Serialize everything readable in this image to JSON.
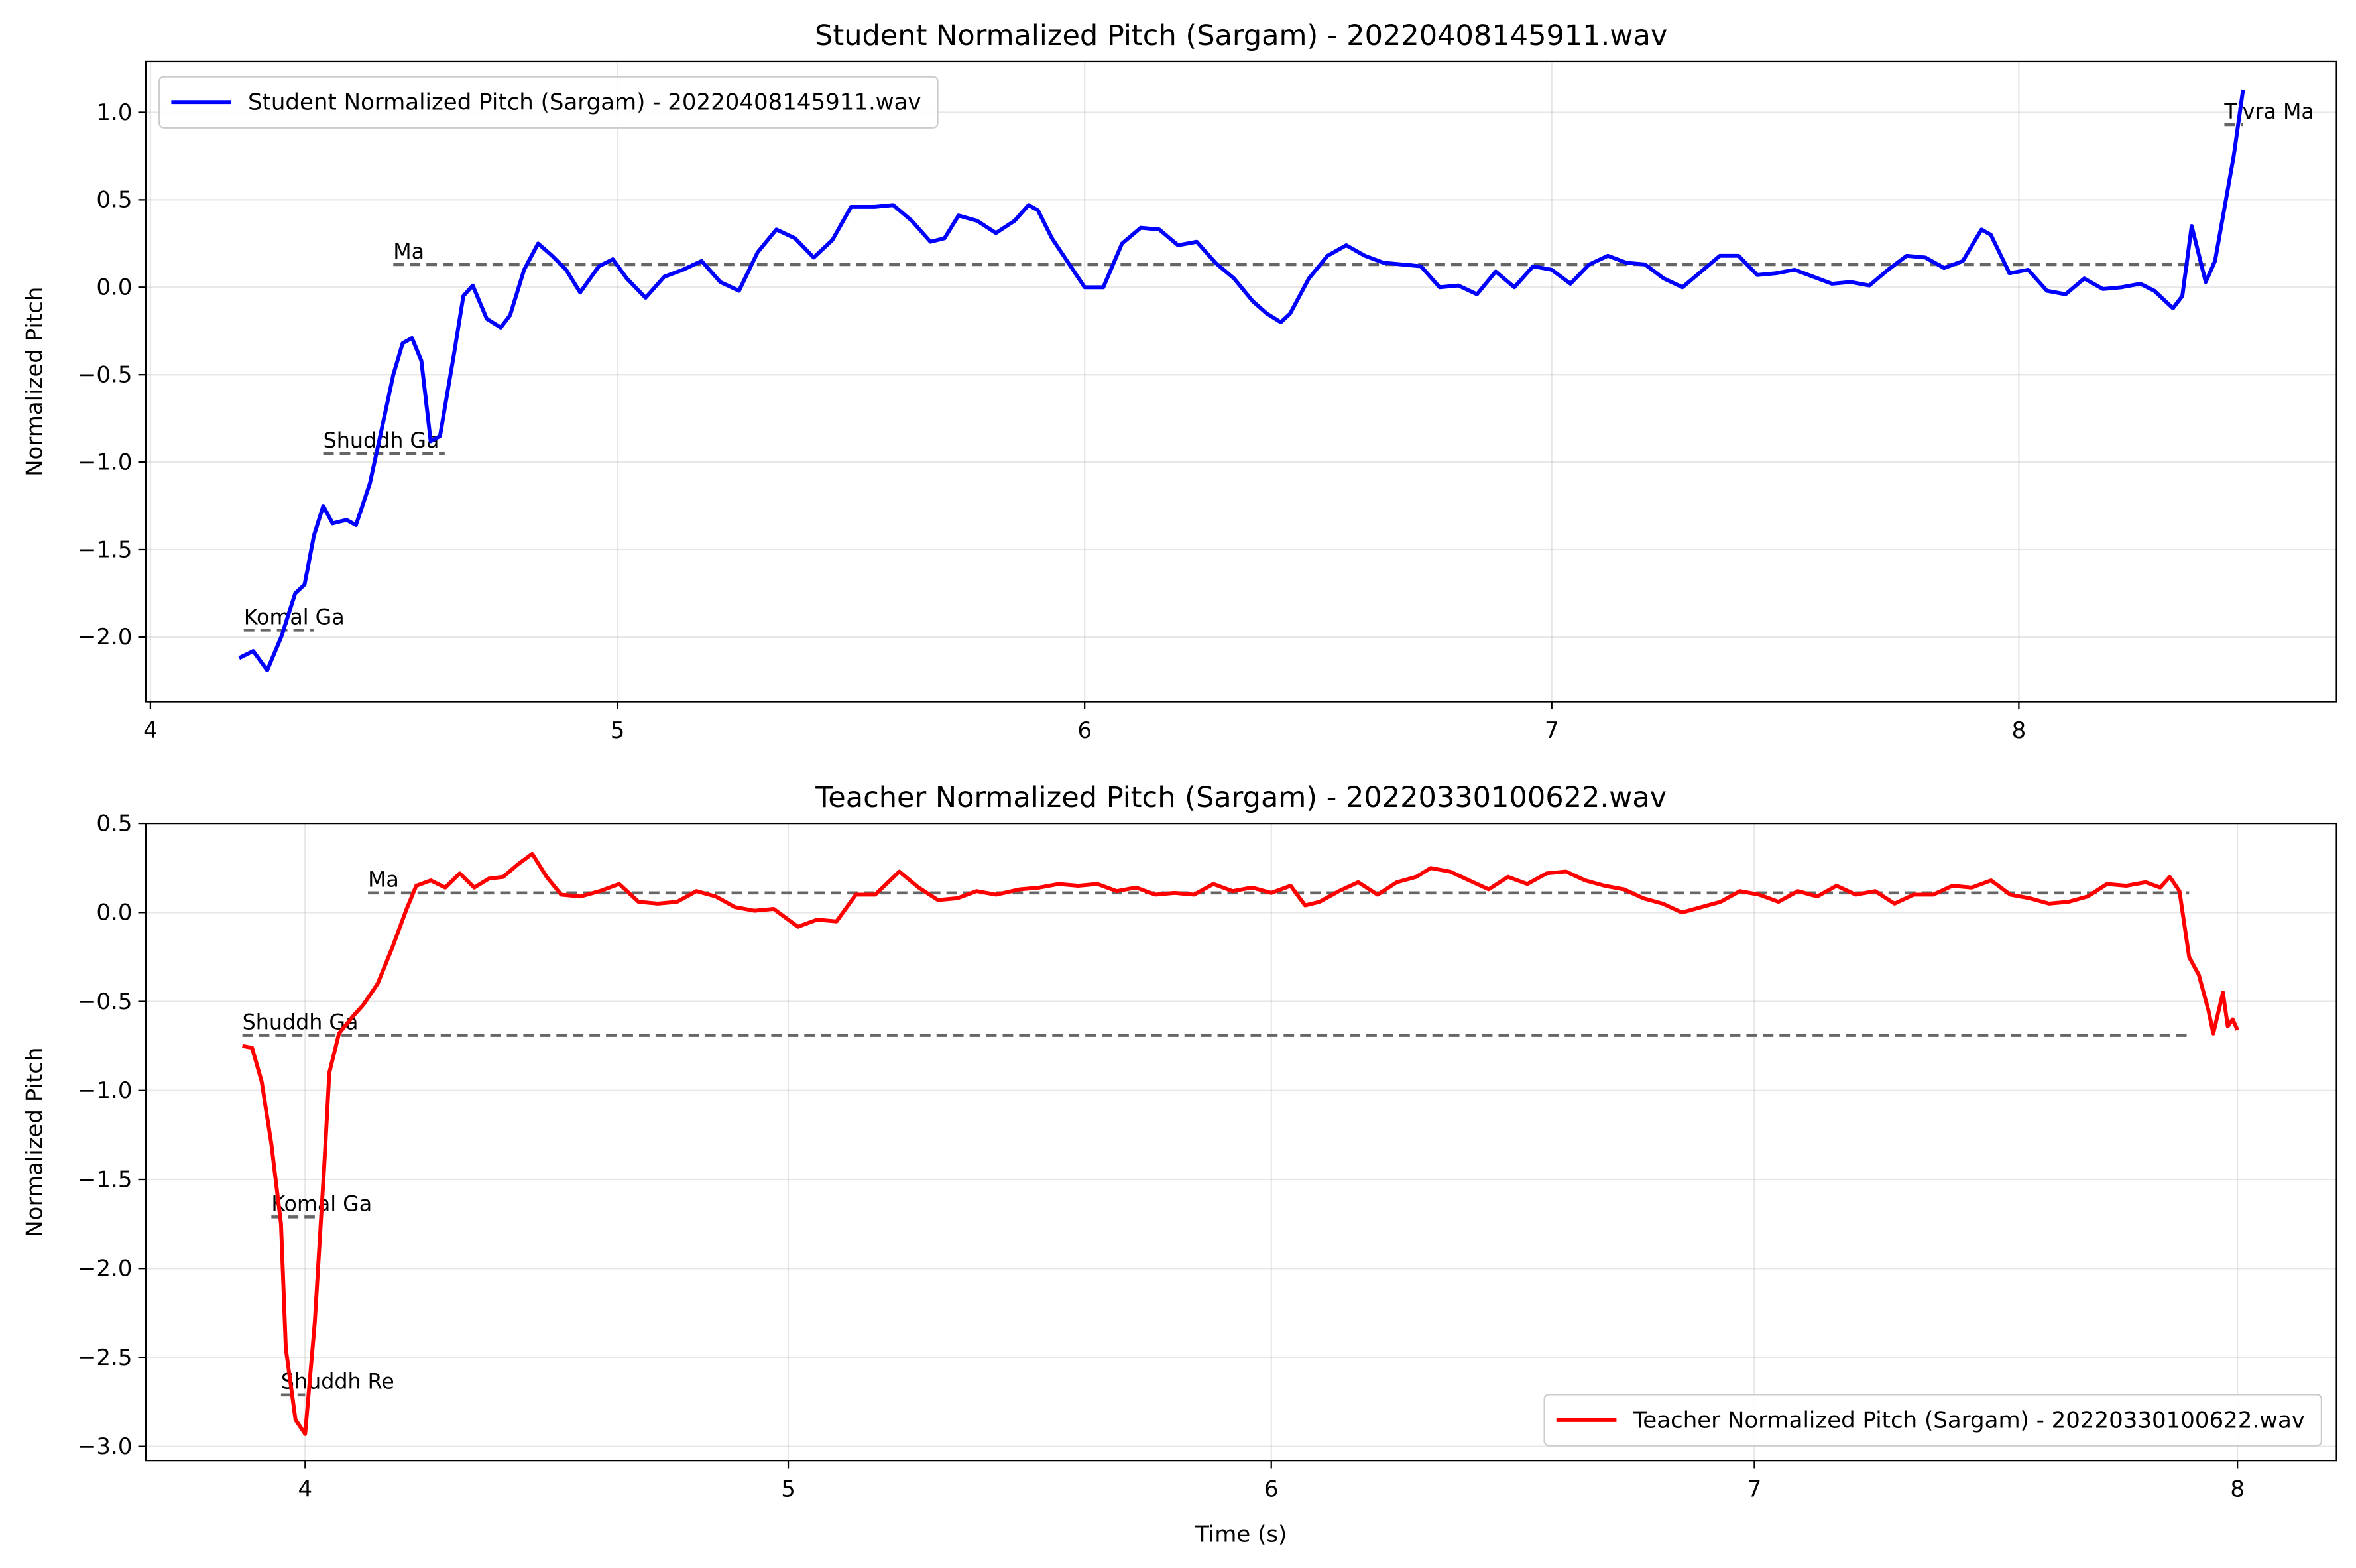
{
  "chart_data": [
    {
      "type": "line",
      "title": "Student Normalized Pitch (Sargam) - 20220408145911.wav",
      "ylabel": "Normalized Pitch",
      "xlim": [
        3.99,
        8.68
      ],
      "ylim": [
        -2.37,
        1.29
      ],
      "xticks": [
        4,
        5,
        6,
        7,
        8
      ],
      "yticks": [
        {
          "value": -2.0,
          "label": "−2.0"
        },
        {
          "value": -1.5,
          "label": "−1.5"
        },
        {
          "value": -1.0,
          "label": "−1.0"
        },
        {
          "value": -0.5,
          "label": "−0.5"
        },
        {
          "value": 0.0,
          "label": "0.0"
        },
        {
          "value": 0.5,
          "label": "0.5"
        },
        {
          "value": 1.0,
          "label": "1.0"
        }
      ],
      "grid": true,
      "legend": "upper left",
      "reference_lines": [
        {
          "label": "Komal Ga",
          "value": -1.96,
          "x": [
            4.2,
            4.35
          ]
        },
        {
          "label": "Shuddh Ga",
          "value": -0.95,
          "x": [
            4.37,
            4.63
          ]
        },
        {
          "label": "Ma",
          "value": 0.13,
          "x": [
            4.52,
            8.42
          ]
        },
        {
          "label": "Tivra Ma",
          "value": 0.93,
          "x": [
            8.44,
            8.48
          ]
        }
      ],
      "series": [
        {
          "name": "Student Normalized Pitch (Sargam) - 20220408145911.wav",
          "color": "#0000ff",
          "x": [
            4.19,
            4.22,
            4.25,
            4.28,
            4.31,
            4.33,
            4.35,
            4.37,
            4.39,
            4.42,
            4.44,
            4.47,
            4.5,
            4.52,
            4.54,
            4.56,
            4.58,
            4.6,
            4.62,
            4.65,
            4.67,
            4.69,
            4.72,
            4.75,
            4.77,
            4.8,
            4.83,
            4.86,
            4.89,
            4.92,
            4.96,
            4.99,
            5.02,
            5.06,
            5.1,
            5.14,
            5.18,
            5.22,
            5.26,
            5.3,
            5.34,
            5.38,
            5.42,
            5.46,
            5.5,
            5.55,
            5.59,
            5.63,
            5.67,
            5.7,
            5.73,
            5.77,
            5.81,
            5.85,
            5.88,
            5.9,
            5.93,
            5.97,
            6.0,
            6.04,
            6.08,
            6.12,
            6.16,
            6.2,
            6.24,
            6.28,
            6.32,
            6.36,
            6.39,
            6.42,
            6.44,
            6.48,
            6.52,
            6.56,
            6.6,
            6.64,
            6.68,
            6.72,
            6.76,
            6.8,
            6.84,
            6.88,
            6.92,
            6.96,
            7.0,
            7.04,
            7.08,
            7.12,
            7.16,
            7.2,
            7.24,
            7.28,
            7.32,
            7.36,
            7.4,
            7.44,
            7.48,
            7.52,
            7.56,
            7.6,
            7.64,
            7.68,
            7.72,
            7.76,
            7.8,
            7.84,
            7.88,
            7.92,
            7.94,
            7.98,
            8.02,
            8.06,
            8.1,
            8.14,
            8.18,
            8.22,
            8.26,
            8.29,
            8.33,
            8.35,
            8.37,
            8.4,
            8.42,
            8.44,
            8.46,
            8.48
          ],
          "values": [
            -2.12,
            -2.08,
            -2.19,
            -2.0,
            -1.75,
            -1.7,
            -1.42,
            -1.25,
            -1.35,
            -1.33,
            -1.36,
            -1.12,
            -0.75,
            -0.5,
            -0.32,
            -0.29,
            -0.42,
            -0.88,
            -0.85,
            -0.38,
            -0.05,
            0.01,
            -0.18,
            -0.23,
            -0.16,
            0.1,
            0.25,
            0.18,
            0.1,
            -0.03,
            0.12,
            0.16,
            0.05,
            -0.06,
            0.06,
            0.1,
            0.15,
            0.03,
            -0.02,
            0.2,
            0.33,
            0.28,
            0.17,
            0.27,
            0.46,
            0.46,
            0.47,
            0.38,
            0.26,
            0.28,
            0.41,
            0.38,
            0.31,
            0.38,
            0.47,
            0.44,
            0.28,
            0.12,
            0.0,
            0.0,
            0.25,
            0.34,
            0.33,
            0.24,
            0.26,
            0.14,
            0.05,
            -0.08,
            -0.15,
            -0.2,
            -0.15,
            0.05,
            0.18,
            0.24,
            0.18,
            0.14,
            0.13,
            0.12,
            0.0,
            0.01,
            -0.04,
            0.09,
            0.0,
            0.12,
            0.1,
            0.02,
            0.13,
            0.18,
            0.14,
            0.13,
            0.05,
            0.0,
            0.09,
            0.18,
            0.18,
            0.07,
            0.08,
            0.1,
            0.06,
            0.02,
            0.03,
            0.01,
            0.1,
            0.18,
            0.17,
            0.11,
            0.15,
            0.33,
            0.3,
            0.08,
            0.1,
            -0.02,
            -0.04,
            0.05,
            -0.01,
            0.0,
            0.02,
            -0.02,
            -0.12,
            -0.05,
            0.35,
            0.03,
            0.15,
            0.45,
            0.75,
            1.13
          ]
        }
      ]
    },
    {
      "type": "line",
      "title": "Teacher Normalized Pitch (Sargam) - 20220330100622.wav",
      "xlabel": "Time (s)",
      "ylabel": "Normalized Pitch",
      "xlim": [
        3.67,
        8.205
      ],
      "ylim": [
        -3.08,
        0.5
      ],
      "xticks": [
        4,
        5,
        6,
        7,
        8
      ],
      "yticks": [
        {
          "value": -3.0,
          "label": "−3.0"
        },
        {
          "value": -2.5,
          "label": "−2.5"
        },
        {
          "value": -2.0,
          "label": "−2.0"
        },
        {
          "value": -1.5,
          "label": "−1.5"
        },
        {
          "value": -1.0,
          "label": "−1.0"
        },
        {
          "value": -0.5,
          "label": "−0.5"
        },
        {
          "value": 0.0,
          "label": "0.0"
        },
        {
          "value": 0.5,
          "label": "0.5"
        }
      ],
      "grid": true,
      "legend": "lower right",
      "reference_lines": [
        {
          "label": "Ma",
          "value": 0.11,
          "x": [
            4.13,
            7.9
          ]
        },
        {
          "label": "Shuddh Ga",
          "value": -0.69,
          "x": [
            3.87,
            7.9
          ]
        },
        {
          "label": "Komal Ga",
          "value": -1.71,
          "x": [
            3.93,
            4.02
          ]
        },
        {
          "label": "Shuddh Re",
          "value": -2.71,
          "x": [
            3.95,
            4.0
          ]
        }
      ],
      "series": [
        {
          "name": "Teacher Normalized Pitch (Sargam) - 20220330100622.wav",
          "color": "#ff0000",
          "x": [
            3.87,
            3.89,
            3.91,
            3.93,
            3.95,
            3.96,
            3.98,
            4.0,
            4.02,
            4.04,
            4.05,
            4.07,
            4.1,
            4.12,
            4.15,
            4.18,
            4.21,
            4.23,
            4.26,
            4.29,
            4.32,
            4.35,
            4.38,
            4.41,
            4.44,
            4.47,
            4.5,
            4.53,
            4.57,
            4.61,
            4.65,
            4.69,
            4.73,
            4.77,
            4.81,
            4.85,
            4.89,
            4.93,
            4.97,
            5.02,
            5.06,
            5.1,
            5.14,
            5.18,
            5.23,
            5.27,
            5.31,
            5.35,
            5.39,
            5.43,
            5.48,
            5.52,
            5.56,
            5.6,
            5.64,
            5.68,
            5.72,
            5.76,
            5.8,
            5.84,
            5.88,
            5.92,
            5.96,
            6.0,
            6.04,
            6.07,
            6.1,
            6.14,
            6.18,
            6.22,
            6.26,
            6.3,
            6.33,
            6.37,
            6.41,
            6.45,
            6.49,
            6.53,
            6.57,
            6.61,
            6.65,
            6.69,
            6.73,
            6.77,
            6.81,
            6.85,
            6.89,
            6.93,
            6.97,
            7.01,
            7.05,
            7.09,
            7.13,
            7.17,
            7.21,
            7.25,
            7.29,
            7.33,
            7.37,
            7.41,
            7.45,
            7.49,
            7.53,
            7.57,
            7.61,
            7.65,
            7.69,
            7.73,
            7.77,
            7.81,
            7.84,
            7.86,
            7.88,
            7.9,
            7.92,
            7.94,
            7.95,
            7.97,
            7.98,
            7.99,
            8.0
          ],
          "values": [
            -0.75,
            -0.76,
            -0.95,
            -1.3,
            -1.75,
            -2.45,
            -2.85,
            -2.93,
            -2.3,
            -1.4,
            -0.9,
            -0.68,
            -0.58,
            -0.52,
            -0.4,
            -0.2,
            0.02,
            0.15,
            0.18,
            0.14,
            0.22,
            0.14,
            0.19,
            0.2,
            0.27,
            0.33,
            0.2,
            0.1,
            0.09,
            0.12,
            0.16,
            0.06,
            0.05,
            0.06,
            0.12,
            0.09,
            0.03,
            0.01,
            0.02,
            -0.08,
            -0.04,
            -0.05,
            0.1,
            0.1,
            0.23,
            0.14,
            0.07,
            0.08,
            0.12,
            0.1,
            0.13,
            0.14,
            0.16,
            0.15,
            0.16,
            0.12,
            0.14,
            0.1,
            0.11,
            0.1,
            0.16,
            0.12,
            0.14,
            0.11,
            0.15,
            0.04,
            0.06,
            0.12,
            0.17,
            0.1,
            0.17,
            0.2,
            0.25,
            0.23,
            0.18,
            0.13,
            0.2,
            0.16,
            0.22,
            0.23,
            0.18,
            0.15,
            0.13,
            0.08,
            0.05,
            0.0,
            0.03,
            0.06,
            0.12,
            0.1,
            0.06,
            0.12,
            0.09,
            0.15,
            0.1,
            0.12,
            0.05,
            0.1,
            0.1,
            0.15,
            0.14,
            0.18,
            0.1,
            0.08,
            0.05,
            0.06,
            0.09,
            0.16,
            0.15,
            0.17,
            0.14,
            0.2,
            0.12,
            -0.25,
            -0.35,
            -0.55,
            -0.68,
            -0.45,
            -0.64,
            -0.6,
            -0.66
          ]
        }
      ]
    }
  ]
}
